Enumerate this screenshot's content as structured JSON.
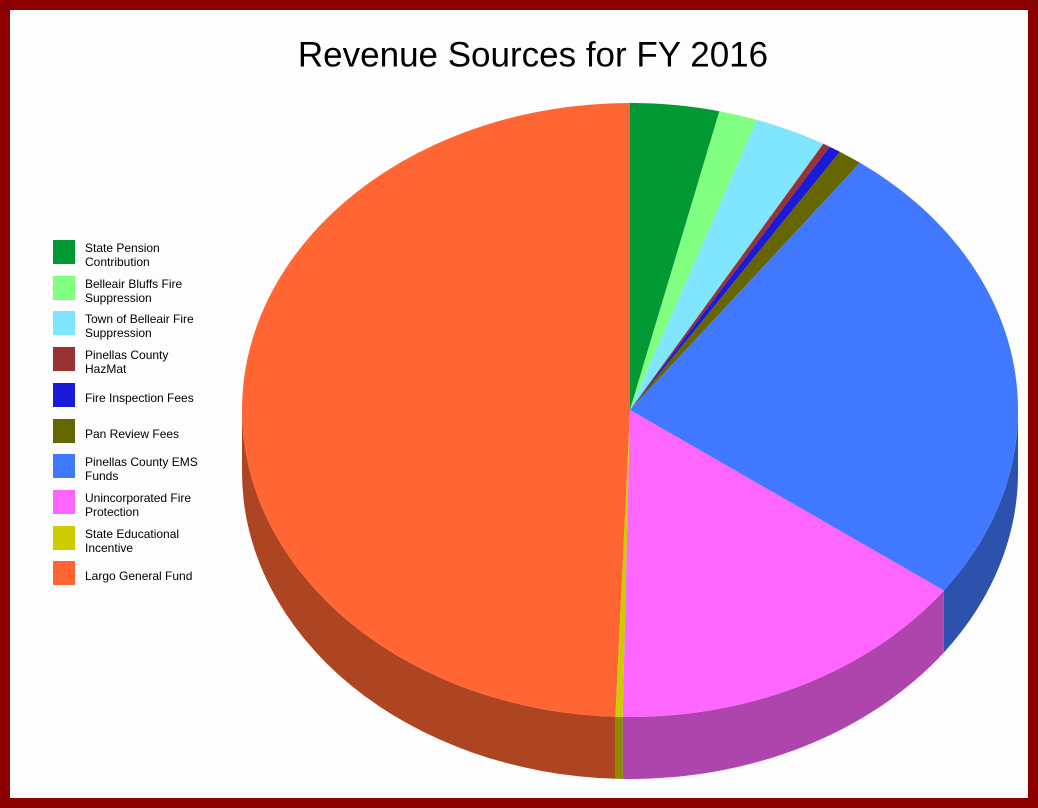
{
  "chart_data": {
    "type": "pie3d",
    "title": "Revenue Sources for FY 2016",
    "categories": [
      "State Pension Contribution",
      "Belleair Bluffs Fire Suppression",
      "Town of Belleair Fire Suppression",
      "Pinellas County HazMat",
      "Fire Inspection Fees",
      "Pan Review Fees",
      "Pinellas County EMS Funds",
      "Unincorporated Fire Protection",
      "State Educational Incentive",
      "Largo General Fund"
    ],
    "values": [
      3.7,
      1.6,
      3.0,
      0.3,
      0.5,
      1.0,
      24.9,
      15.3,
      0.3,
      49.4
    ],
    "colors": [
      "#009933",
      "#80ff80",
      "#80e5ff",
      "#993333",
      "#1a1ad9",
      "#666600",
      "#4078ff",
      "#ff66ff",
      "#cccc00",
      "#ff6633"
    ],
    "legend": "left"
  }
}
